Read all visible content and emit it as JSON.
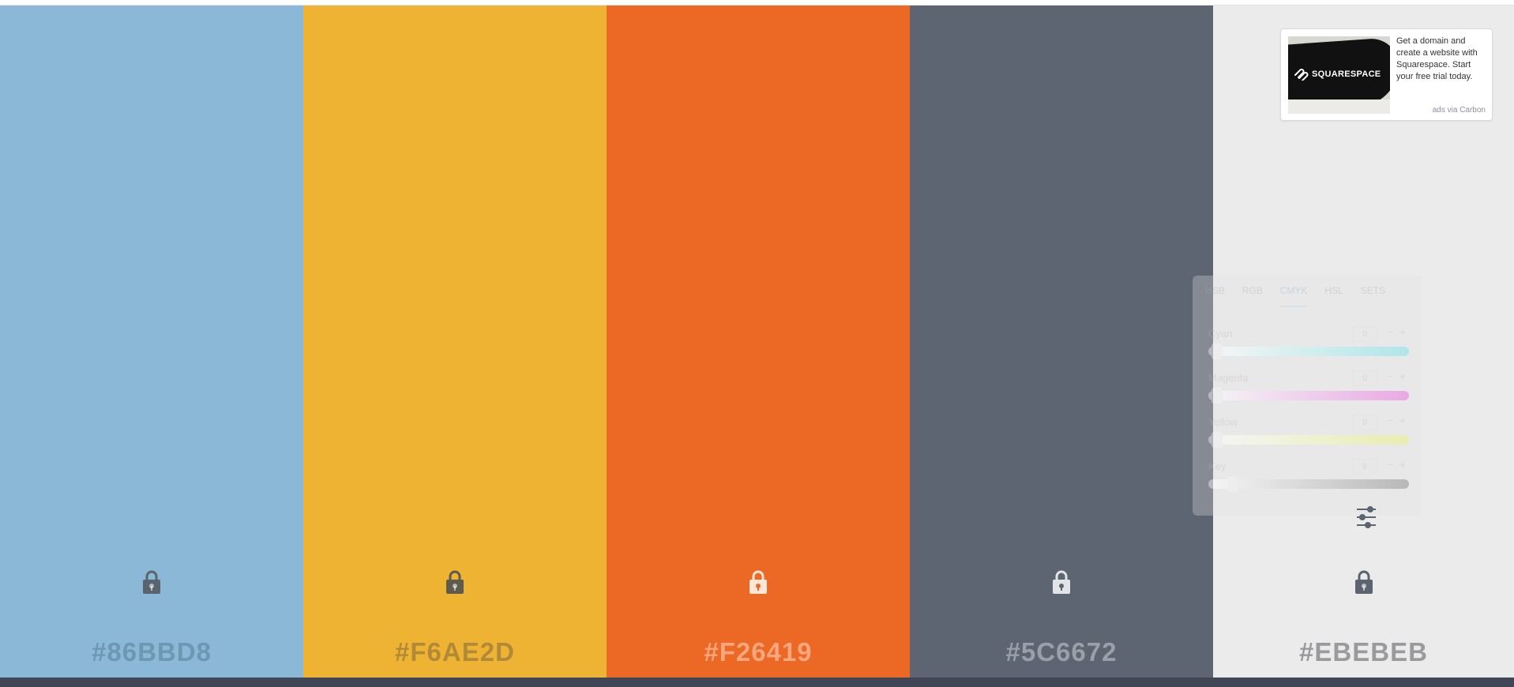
{
  "swatches": [
    {
      "hex": "#86BBD8",
      "bg": "#8BB8D7",
      "text": "#6E97B2",
      "lock": "#5A646E"
    },
    {
      "hex": "#F6AE2D",
      "bg": "#EFB334",
      "text": "#B18A37",
      "lock": "#5E5A4E"
    },
    {
      "hex": "#F26419",
      "bg": "#EB6825",
      "text": "#F8A67D",
      "lock": "#FFE6D6"
    },
    {
      "hex": "#5C6672",
      "bg": "#5E6572",
      "text": "#9AA0A8",
      "lock": "#E2E4E7"
    },
    {
      "hex": "#EBEBEB",
      "bg": "#EBEBEB",
      "text": "#9A9A9E",
      "lock": "#5C6470"
    }
  ],
  "ad": {
    "text": "Get a domain and create a website with Squarespace. Start your free trial today.",
    "logo": "SQUARESPACE",
    "via": "ads via Carbon"
  },
  "picker": {
    "tabs": [
      "HSB",
      "RGB",
      "CMYK",
      "HSL",
      "SETS"
    ],
    "active_tab": "CMYK",
    "controls": [
      {
        "label": "Cyan",
        "value": "0"
      },
      {
        "label": "Magenta",
        "value": "0"
      },
      {
        "label": "Yellow",
        "value": "0"
      },
      {
        "label": "Key",
        "value": "8"
      }
    ],
    "minus": "−",
    "plus": "+"
  },
  "icons": {
    "lock": "lock-icon",
    "adjust": "sliders-icon",
    "logo": "squarespace-logo-icon"
  }
}
